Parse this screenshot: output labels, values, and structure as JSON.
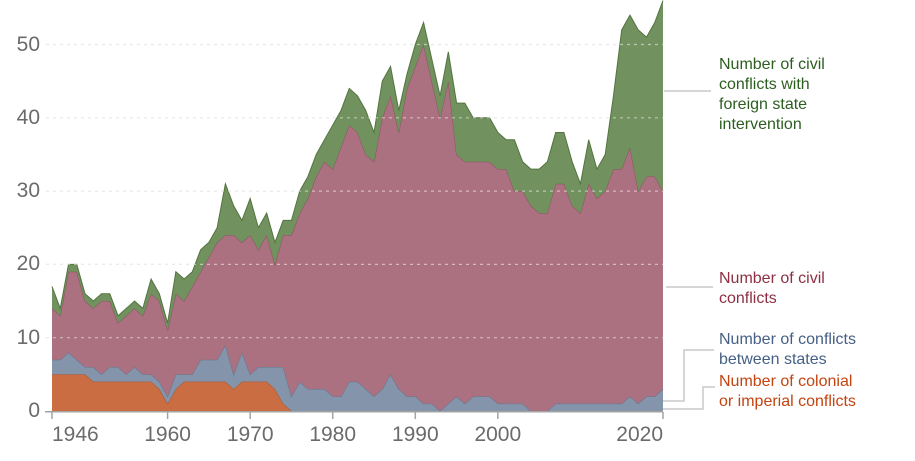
{
  "chart_data": {
    "type": "area",
    "stacked": true,
    "title": "",
    "xlabel": "",
    "ylabel": "",
    "xlim": [
      1946,
      2020
    ],
    "ylim": [
      0,
      56
    ],
    "grid": "dashed horizontal",
    "legend_position": "right, connected by elbow lines",
    "x_start_year": 1946,
    "x_step": 1,
    "xticks": [
      1946,
      1960,
      1970,
      1980,
      1990,
      2000,
      2020
    ],
    "yticks": [
      0,
      10,
      20,
      30,
      40,
      50
    ],
    "series": [
      {
        "key": "colonial",
        "name": "Number of colonial or imperial conflicts",
        "color": "#cb6d42",
        "stroke": "#a9562c",
        "values": [
          5,
          5,
          5,
          5,
          5,
          4,
          4,
          4,
          4,
          4,
          4,
          4,
          4,
          3,
          1,
          3,
          4,
          4,
          4,
          4,
          4,
          4,
          3,
          4,
          4,
          4,
          4,
          3,
          1,
          0,
          0,
          0,
          0,
          0,
          0,
          0,
          0,
          0,
          0,
          0,
          0,
          0,
          0,
          0,
          0,
          0,
          0,
          0,
          0,
          0,
          0,
          0,
          0,
          0,
          0,
          0,
          0,
          0,
          0,
          0,
          0,
          0,
          0,
          0,
          0,
          0,
          0,
          0,
          0,
          0,
          0,
          0,
          0,
          0,
          0
        ]
      },
      {
        "key": "interstate",
        "name": "Number of conflicts between states",
        "color": "#8494aa",
        "stroke": "#64748c",
        "values": [
          2,
          2,
          3,
          2,
          1,
          2,
          1,
          2,
          2,
          1,
          2,
          1,
          1,
          1,
          1,
          2,
          1,
          1,
          3,
          3,
          3,
          5,
          2,
          4,
          1,
          2,
          2,
          3,
          5,
          2,
          4,
          3,
          3,
          3,
          2,
          2,
          4,
          4,
          3,
          2,
          3,
          5,
          3,
          2,
          2,
          1,
          1,
          0,
          1,
          2,
          1,
          2,
          2,
          2,
          1,
          1,
          1,
          1,
          0,
          0,
          0,
          1,
          1,
          1,
          1,
          1,
          1,
          1,
          1,
          1,
          2,
          1,
          2,
          2,
          3
        ]
      },
      {
        "key": "civil",
        "name": "Number of civil conflicts",
        "color": "#ac7181",
        "stroke": "#8b5261",
        "values": [
          7,
          6,
          11,
          12,
          9,
          8,
          10,
          9,
          6,
          8,
          8,
          8,
          11,
          11,
          9,
          11,
          10,
          12,
          12,
          14,
          16,
          15,
          19,
          15,
          19,
          16,
          18,
          14,
          18,
          22,
          23,
          26,
          29,
          31,
          31,
          34,
          35,
          34,
          32,
          32,
          37,
          38,
          35,
          42,
          45,
          49,
          44,
          40,
          44,
          33,
          33,
          32,
          32,
          32,
          32,
          32,
          29,
          29,
          28,
          27,
          27,
          30,
          30,
          27,
          26,
          30,
          28,
          29,
          32,
          32,
          34,
          29,
          30,
          30,
          27
        ]
      },
      {
        "key": "civil_intervention",
        "name": "Number of civil conflicts with foreign state intervention",
        "color": "#71925f",
        "stroke": "#53743f",
        "values": [
          3,
          1,
          1,
          1,
          1,
          1,
          1,
          1,
          1,
          1,
          1,
          1,
          2,
          1,
          1,
          3,
          3,
          2,
          3,
          2,
          2,
          7,
          4,
          3,
          5,
          3,
          3,
          3,
          2,
          2,
          3,
          3,
          3,
          3,
          6,
          5,
          5,
          5,
          6,
          4,
          5,
          4,
          3,
          2,
          3,
          3,
          3,
          3,
          4,
          7,
          8,
          6,
          6,
          6,
          5,
          4,
          7,
          4,
          5,
          6,
          7,
          7,
          7,
          6,
          4,
          6,
          4,
          5,
          10,
          19,
          18,
          22,
          19,
          21,
          26
        ]
      }
    ]
  },
  "axis": {
    "y_labels": [
      "0",
      "10",
      "20",
      "30",
      "40",
      "50"
    ],
    "x_labels": [
      "1946",
      "1960",
      "1970",
      "1980",
      "1990",
      "2000",
      "2020"
    ]
  },
  "legend": {
    "intervention": {
      "lines": [
        "Number of civil",
        "conflicts with",
        "foreign state",
        "intervention"
      ]
    },
    "civil": {
      "lines": [
        "Number of civil",
        "conflicts"
      ]
    },
    "interstate": {
      "lines": [
        "Number of conflicts",
        "between states"
      ]
    },
    "colonial": {
      "lines": [
        "Number of colonial",
        "or imperial conflicts"
      ]
    }
  },
  "colors": {
    "axis_text": "#6b6b6b",
    "axis_line": "#a3a3a3",
    "gridline": "#d6d6d6",
    "connector": "#c9c9c9",
    "legend_intervention": "#2c5e1f",
    "legend_civil": "#8e3044",
    "legend_interstate": "#455f85",
    "legend_colonial": "#c4430f"
  }
}
